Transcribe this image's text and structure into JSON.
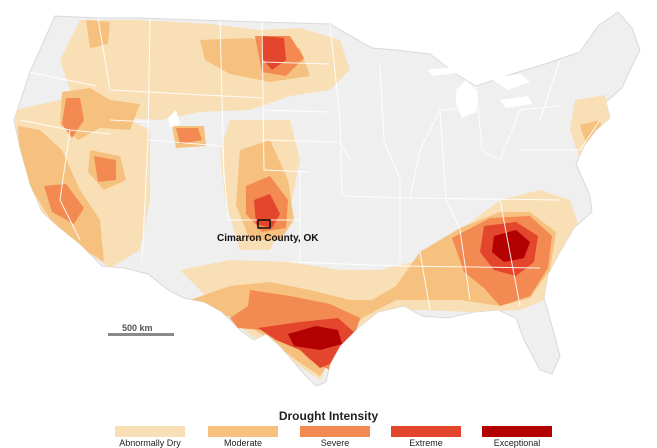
{
  "map": {
    "callout_label": "Cimarron County, OK",
    "scale_label": "500 km"
  },
  "legend": {
    "title": "Drought Intensity",
    "items": [
      {
        "label": "Abnormally Dry",
        "color": "#f9dfb6"
      },
      {
        "label": "Moderate",
        "color": "#f6c07e"
      },
      {
        "label": "Severe",
        "color": "#f28a52"
      },
      {
        "label": "Extreme",
        "color": "#e4462d"
      },
      {
        "label": "Exceptional",
        "color": "#b30000"
      }
    ]
  },
  "colors": {
    "land": "#efefef",
    "borders": "#ffffff",
    "water": "#ffffff"
  }
}
